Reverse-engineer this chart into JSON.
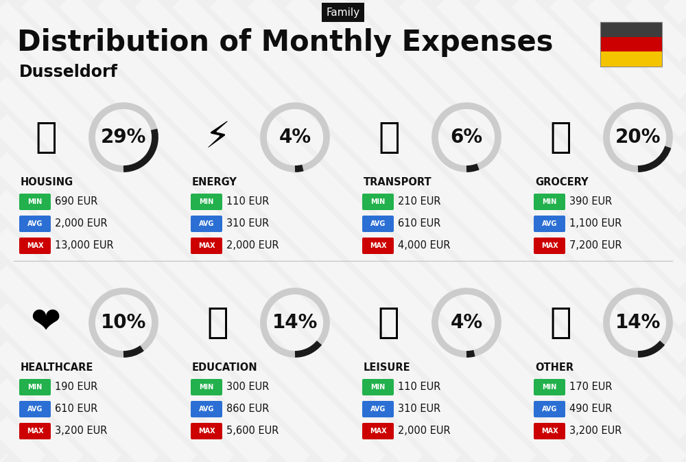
{
  "title": "Distribution of Monthly Expenses",
  "subtitle": "Dusseldorf",
  "family_label": "Family",
  "bg_color": "#efefef",
  "categories": [
    {
      "name": "HOUSING",
      "pct": 29,
      "min": "690 EUR",
      "avg": "2,000 EUR",
      "max": "13,000 EUR",
      "col": 0,
      "row": 0
    },
    {
      "name": "ENERGY",
      "pct": 4,
      "min": "110 EUR",
      "avg": "310 EUR",
      "max": "2,000 EUR",
      "col": 1,
      "row": 0
    },
    {
      "name": "TRANSPORT",
      "pct": 6,
      "min": "210 EUR",
      "avg": "610 EUR",
      "max": "4,000 EUR",
      "col": 2,
      "row": 0
    },
    {
      "name": "GROCERY",
      "pct": 20,
      "min": "390 EUR",
      "avg": "1,100 EUR",
      "max": "7,200 EUR",
      "col": 3,
      "row": 0
    },
    {
      "name": "HEALTHCARE",
      "pct": 10,
      "min": "190 EUR",
      "avg": "610 EUR",
      "max": "3,200 EUR",
      "col": 0,
      "row": 1
    },
    {
      "name": "EDUCATION",
      "pct": 14,
      "min": "300 EUR",
      "avg": "860 EUR",
      "max": "5,600 EUR",
      "col": 1,
      "row": 1
    },
    {
      "name": "LEISURE",
      "pct": 4,
      "min": "110 EUR",
      "avg": "310 EUR",
      "max": "2,000 EUR",
      "col": 2,
      "row": 1
    },
    {
      "name": "OTHER",
      "pct": 14,
      "min": "170 EUR",
      "avg": "490 EUR",
      "max": "3,200 EUR",
      "col": 3,
      "row": 1
    }
  ],
  "min_color": "#22b14c",
  "avg_color": "#2b6fd4",
  "max_color": "#cc0000",
  "arc_dark": "#1a1a1a",
  "arc_light": "#cccccc",
  "flag_colors": [
    "#3d3d3d",
    "#cc0000",
    "#f5c400"
  ],
  "title_fontsize": 30,
  "subtitle_fontsize": 17,
  "pct_fontsize": 20,
  "cat_fontsize": 10.5,
  "val_fontsize": 10.5,
  "badge_fontsize": 7,
  "family_fontsize": 11
}
